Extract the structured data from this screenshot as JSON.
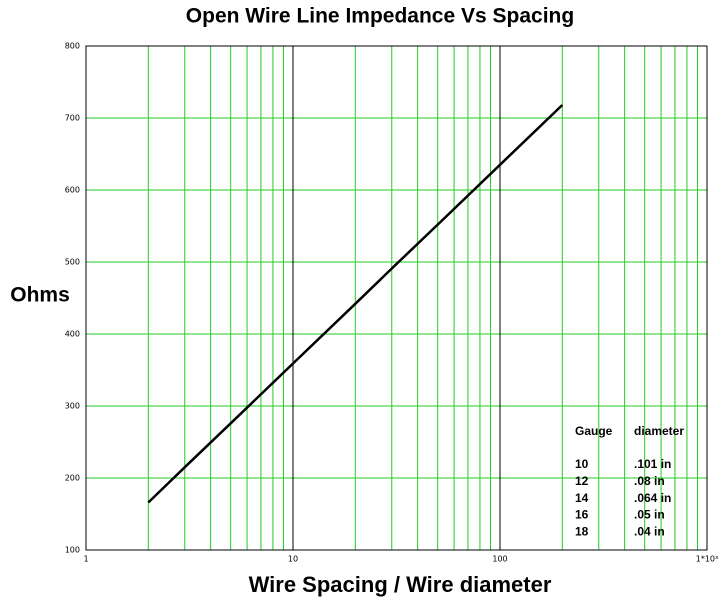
{
  "chart_data": {
    "type": "line",
    "title": "Open Wire Line Impedance Vs Spacing",
    "xlabel": "Wire Spacing / Wire diameter",
    "ylabel": "Ohms",
    "xscale": "log",
    "xlim": [
      1,
      1000
    ],
    "xticks": [
      1,
      10,
      100,
      {
        "value": 1000,
        "label": "1*10³"
      }
    ],
    "xminorticks": [
      2,
      3,
      4,
      5,
      6,
      7,
      8,
      9,
      20,
      30,
      40,
      50,
      60,
      70,
      80,
      90,
      200,
      300,
      400,
      500,
      600,
      700,
      800,
      900
    ],
    "ylim": [
      100,
      800
    ],
    "yticks": [
      100,
      200,
      300,
      400,
      500,
      600,
      700,
      800
    ],
    "grid": true,
    "grid_color": "#22cc22",
    "major_grid_color": "#000000",
    "x": [
      2,
      3,
      5,
      10,
      20,
      30,
      50,
      100,
      200
    ],
    "series": [
      {
        "color": "#000000",
        "values": [
          166,
          215,
          276,
          359,
          442,
          491,
          552,
          635,
          718
        ]
      }
    ],
    "annotation": {
      "headers": [
        "Gauge",
        "diameter"
      ],
      "rows": [
        [
          "10",
          ".101 in"
        ],
        [
          "12",
          ".08 in"
        ],
        [
          "14",
          ".064 in"
        ],
        [
          "16",
          ".05 in"
        ],
        [
          "18",
          ".04 in"
        ]
      ]
    }
  }
}
